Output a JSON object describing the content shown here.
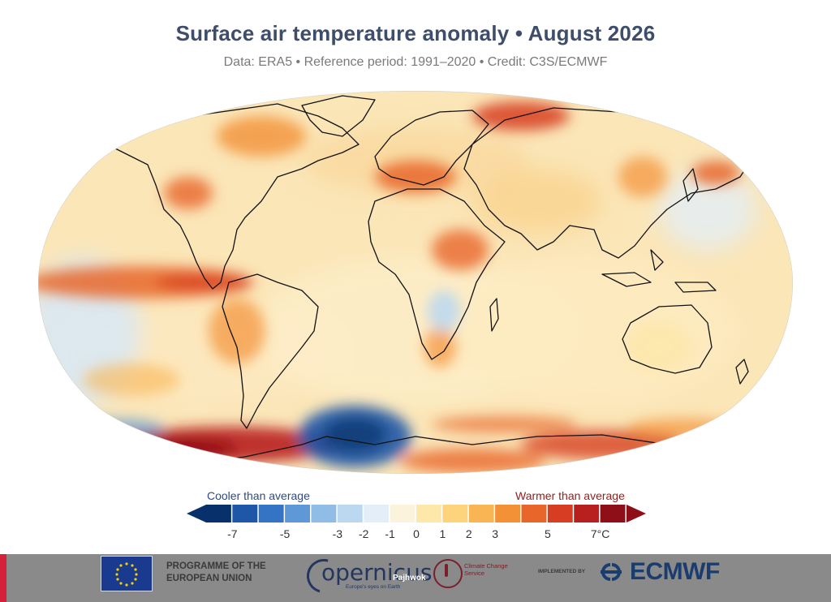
{
  "header": {
    "title": "Surface air temperature anomaly • August 2026",
    "subtitle": "Data: ERA5 • Reference period: 1991–2020 • Credit: C3S/ECMWF"
  },
  "legend": {
    "cool_label": "Cooler than average",
    "warm_label": "Warmer than average",
    "ticks": [
      "-7",
      "-5",
      "-3",
      "-2",
      "-1",
      "0",
      "1",
      "2",
      "3",
      "5",
      "7°C"
    ],
    "colors": [
      "#08306b",
      "#1e56a8",
      "#3574c4",
      "#5f98d6",
      "#8fbde6",
      "#bcd8f0",
      "#e3eef8",
      "#fbf3dc",
      "#fde7a9",
      "#fdd37c",
      "#f9b553",
      "#f39137",
      "#e8662a",
      "#d63d22",
      "#b81f1f",
      "#8e0f18"
    ]
  },
  "footer": {
    "eu_label": "PROGRAMME OF THE EUROPEAN UNION",
    "copernicus_label": "opernicus",
    "copernicus_tagline": "Europe's eyes on Earth",
    "watermark": "Pajhwok",
    "c3s_label": "Climate Change Service",
    "implemented_by": "IMPLEMENTED BY",
    "ecmwf_label": "ECMWF"
  }
}
